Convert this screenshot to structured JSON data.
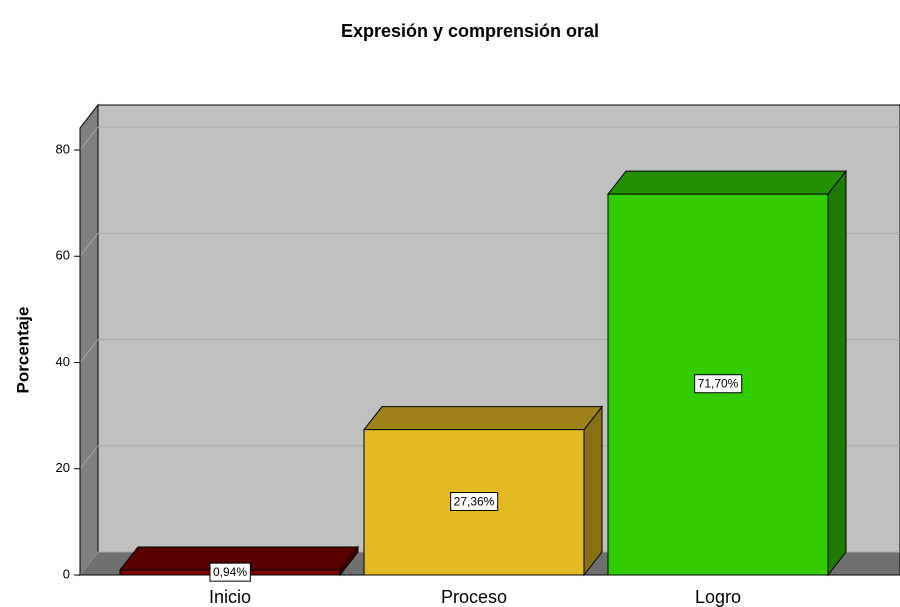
{
  "chart_data": {
    "type": "bar3d",
    "title": "Expresión y comprensión oral",
    "y_label": "Porcentaje",
    "categories": [
      "Inicio",
      "Proceso",
      "Logro"
    ],
    "values": [
      0.94,
      27.36,
      71.7
    ],
    "value_labels": [
      "0,94%",
      "27,36%",
      "71,70%"
    ],
    "colors": [
      "#7d0000",
      "#e2ba22",
      "#33cc00"
    ],
    "ylim": [
      0,
      84
    ],
    "yticks": [
      0,
      20,
      40,
      60,
      80
    ],
    "grid": true
  }
}
